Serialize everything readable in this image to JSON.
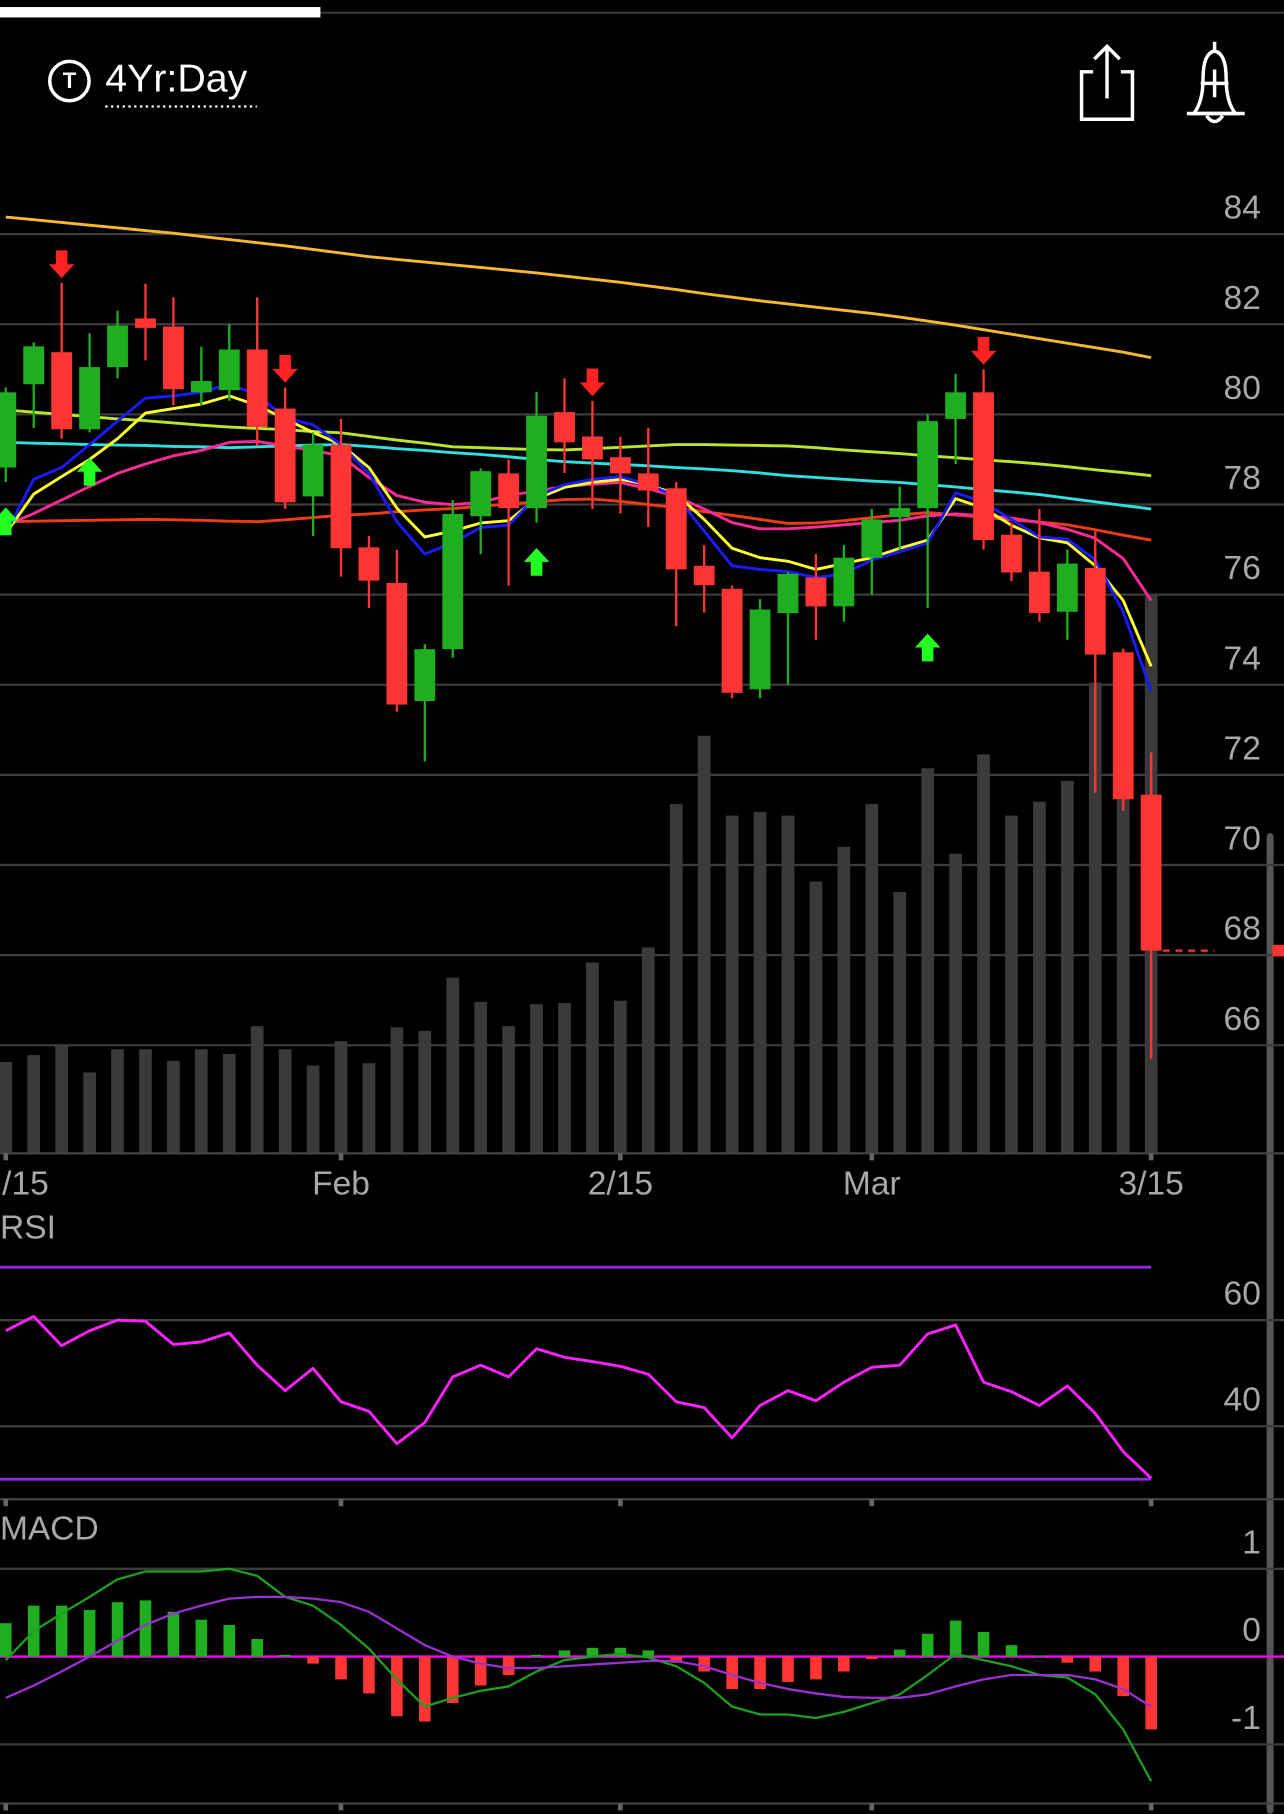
{
  "header": {
    "icon_letter": "T",
    "timeframe": "4Yr:Day"
  },
  "chart_data": [
    {
      "type": "candlestick",
      "categories": [
        "/15",
        null,
        null,
        null,
        null,
        null,
        null,
        null,
        null,
        null,
        null,
        null,
        "Feb",
        null,
        null,
        null,
        null,
        null,
        null,
        null,
        null,
        null,
        "2/15",
        null,
        null,
        null,
        null,
        null,
        null,
        null,
        null,
        "Mar",
        null,
        null,
        null,
        null,
        null,
        null,
        null,
        null,
        null,
        "3/15"
      ],
      "open": [
        78.82,
        80.67,
        81.38,
        79.67,
        81.05,
        82.13,
        81.95,
        80.49,
        80.54,
        81.44,
        80.13,
        78.18,
        79.33,
        77.05,
        76.26,
        73.64,
        74.79,
        77.74,
        78.69,
        77.92,
        80.05,
        79.51,
        79.05,
        78.69,
        78.36,
        76.64,
        76.13,
        73.9,
        75.59,
        76.38,
        75.74,
        76.82,
        77.72,
        77.92,
        79.9,
        80.49,
        77.33,
        76.51,
        75.62,
        76.59,
        74.72,
        71.56
      ],
      "high": [
        80.6,
        81.6,
        82.92,
        81.8,
        82.3,
        82.9,
        82.6,
        81.5,
        82.0,
        82.6,
        80.6,
        79.6,
        79.9,
        77.3,
        77.0,
        74.9,
        78.1,
        78.8,
        79.0,
        80.5,
        80.8,
        80.3,
        79.5,
        79.7,
        78.5,
        77.1,
        76.2,
        75.9,
        76.5,
        76.9,
        77.1,
        77.9,
        78.4,
        80.0,
        80.9,
        81.0,
        77.6,
        77.9,
        77.0,
        77.4,
        74.8,
        72.5
      ],
      "low": [
        78.5,
        79.7,
        79.46,
        79.6,
        80.8,
        81.2,
        80.2,
        80.2,
        80.3,
        79.3,
        77.9,
        77.3,
        76.4,
        75.7,
        73.4,
        72.3,
        74.6,
        76.9,
        76.2,
        77.6,
        78.7,
        77.9,
        77.8,
        77.5,
        75.3,
        75.6,
        73.7,
        73.7,
        74.0,
        75.0,
        75.4,
        76.0,
        77.0,
        75.7,
        78.9,
        77.0,
        76.3,
        75.4,
        75.0,
        71.6,
        71.2,
        65.7
      ],
      "close": [
        80.49,
        81.51,
        79.67,
        81.05,
        81.97,
        81.92,
        80.56,
        80.74,
        81.44,
        79.72,
        78.05,
        79.33,
        77.03,
        76.31,
        73.56,
        74.79,
        77.79,
        78.74,
        77.92,
        79.97,
        79.38,
        79.0,
        78.69,
        78.31,
        76.56,
        76.21,
        73.82,
        75.67,
        76.46,
        75.74,
        76.82,
        77.67,
        77.92,
        79.85,
        80.49,
        77.21,
        76.49,
        75.59,
        76.69,
        74.67,
        71.46,
        68.1
      ],
      "up_color": "#1fae1f",
      "down_color": "#ff3535",
      "volume": [
        79,
        85,
        94,
        70,
        90,
        90,
        80,
        90,
        86,
        110,
        90,
        76,
        97,
        78,
        109,
        106,
        152,
        131,
        110,
        129,
        130,
        165,
        132,
        178,
        302,
        361,
        292,
        295,
        292,
        235,
        265,
        302,
        226,
        333,
        259,
        345,
        292,
        304,
        322,
        407,
        417,
        484
      ],
      "volume_color": "#3a3a3a",
      "overlays": [
        {
          "color": "#f5b82e",
          "values": [
            84.38,
            84.32,
            84.26,
            84.2,
            84.14,
            84.08,
            84.02,
            83.95,
            83.88,
            83.81,
            83.74,
            83.66,
            83.58,
            83.5,
            83.44,
            83.38,
            83.32,
            83.26,
            83.2,
            83.14,
            83.07,
            83.0,
            82.93,
            82.85,
            82.77,
            82.68,
            82.6,
            82.52,
            82.45,
            82.38,
            82.31,
            82.24,
            82.16,
            82.07,
            81.98,
            81.88,
            81.78,
            81.68,
            81.58,
            81.48,
            81.38,
            81.26
          ]
        },
        {
          "color": "#b8e62e",
          "values": [
            80.1,
            80.05,
            80.0,
            79.95,
            79.9,
            79.86,
            79.81,
            79.76,
            79.72,
            79.69,
            79.66,
            79.62,
            79.59,
            79.51,
            79.43,
            79.36,
            79.28,
            79.26,
            79.24,
            79.22,
            79.21,
            79.24,
            79.27,
            79.3,
            79.33,
            79.33,
            79.32,
            79.31,
            79.3,
            79.26,
            79.21,
            79.17,
            79.13,
            79.08,
            79.04,
            78.99,
            78.95,
            78.9,
            78.84,
            78.77,
            78.71,
            78.64
          ]
        },
        {
          "color": "#30e0e0",
          "values": [
            79.38,
            79.36,
            79.35,
            79.33,
            79.32,
            79.31,
            79.29,
            79.28,
            79.26,
            79.28,
            79.3,
            79.32,
            79.33,
            79.29,
            79.24,
            79.2,
            79.15,
            79.11,
            79.06,
            79.0,
            78.95,
            78.92,
            78.89,
            78.86,
            78.82,
            78.79,
            78.75,
            78.7,
            78.64,
            78.6,
            78.56,
            78.52,
            78.49,
            78.44,
            78.39,
            78.33,
            78.28,
            78.22,
            78.14,
            78.06,
            77.98,
            77.9
          ]
        },
        {
          "color": "#f03c14",
          "values": [
            77.62,
            77.63,
            77.64,
            77.65,
            77.66,
            77.67,
            77.66,
            77.65,
            77.63,
            77.62,
            77.66,
            77.71,
            77.76,
            77.79,
            77.84,
            77.88,
            77.91,
            77.96,
            78.01,
            78.06,
            78.11,
            78.12,
            78.07,
            78.0,
            77.93,
            77.84,
            77.76,
            77.67,
            77.58,
            77.59,
            77.64,
            77.71,
            77.77,
            77.82,
            77.77,
            77.72,
            77.66,
            77.61,
            77.55,
            77.44,
            77.32,
            77.21
          ]
        },
        {
          "color": "#ff2a9a",
          "values": [
            77.54,
            77.8,
            78.1,
            78.4,
            78.69,
            78.9,
            79.08,
            79.2,
            79.38,
            79.4,
            79.3,
            79.2,
            79.08,
            78.6,
            78.2,
            78.05,
            78.0,
            78.05,
            78.2,
            78.3,
            78.4,
            78.45,
            78.49,
            78.35,
            78.18,
            77.9,
            77.6,
            77.46,
            77.46,
            77.5,
            77.55,
            77.6,
            77.65,
            77.75,
            77.79,
            77.75,
            77.7,
            77.6,
            77.45,
            77.25,
            76.8,
            75.87
          ]
        },
        {
          "color": "#ffff30",
          "values": [
            77.36,
            78.23,
            78.62,
            79.0,
            79.46,
            80.03,
            80.13,
            80.23,
            80.41,
            80.2,
            79.9,
            79.6,
            79.33,
            78.82,
            77.92,
            77.28,
            77.41,
            77.59,
            77.64,
            78.13,
            78.38,
            78.49,
            78.56,
            78.44,
            78.23,
            77.67,
            77.03,
            76.82,
            76.74,
            76.56,
            76.69,
            76.82,
            77.03,
            77.21,
            78.13,
            77.92,
            77.54,
            77.26,
            77.15,
            76.64,
            75.87,
            74.41
          ]
        },
        {
          "color": "#1a1aff",
          "values": [
            77.36,
            78.56,
            78.82,
            79.33,
            79.85,
            80.36,
            80.41,
            80.49,
            80.67,
            80.44,
            79.92,
            79.77,
            79.33,
            78.69,
            77.62,
            76.9,
            77.15,
            77.49,
            77.54,
            78.18,
            78.44,
            78.56,
            78.62,
            78.44,
            78.18,
            77.41,
            76.64,
            76.56,
            76.51,
            76.38,
            76.46,
            76.77,
            76.95,
            77.15,
            78.26,
            78.05,
            77.67,
            77.28,
            77.23,
            76.77,
            75.62,
            73.87
          ]
        }
      ],
      "buy_signals": [
        0,
        3,
        19,
        33
      ],
      "sell_signals": [
        2,
        10,
        21,
        35
      ],
      "buy_color": "#22ff22",
      "sell_color": "#ff2222",
      "ylim": [
        63.6,
        85.6
      ],
      "yticks": [
        66,
        68,
        70,
        72,
        74,
        76,
        78,
        80,
        82,
        84
      ],
      "grid": true
    },
    {
      "type": "line",
      "title": "RSI",
      "values": [
        58.0,
        60.7,
        55.2,
        58.0,
        60.0,
        59.8,
        55.4,
        55.9,
        57.6,
        51.5,
        46.7,
        50.9,
        44.6,
        42.8,
        36.7,
        40.7,
        49.3,
        51.5,
        49.3,
        54.6,
        53.0,
        52.2,
        51.3,
        49.8,
        44.6,
        43.5,
        37.8,
        43.9,
        46.7,
        44.8,
        48.3,
        51.1,
        51.5,
        57.4,
        59.1,
        48.3,
        46.5,
        43.9,
        47.6,
        42.4,
        35.2,
        30.2
      ],
      "color": "#ff22ff",
      "bands": [
        70,
        30
      ],
      "band_color": "#8a2be2",
      "ylim": [
        26,
        74
      ],
      "yticks": [
        40,
        60
      ],
      "grid": true
    },
    {
      "type": "macd",
      "title": "MACD",
      "histogram": [
        0.38,
        0.58,
        0.58,
        0.53,
        0.62,
        0.64,
        0.51,
        0.42,
        0.36,
        0.2,
        0.02,
        -0.08,
        -0.26,
        -0.42,
        -0.68,
        -0.74,
        -0.53,
        -0.33,
        -0.21,
        0.02,
        0.07,
        0.1,
        0.1,
        0.07,
        -0.07,
        -0.17,
        -0.37,
        -0.37,
        -0.29,
        -0.26,
        -0.17,
        -0.03,
        0.08,
        0.26,
        0.41,
        0.28,
        0.13,
        0.01,
        -0.07,
        -0.17,
        -0.45,
        -0.83
      ],
      "macd": [
        -0.04,
        0.29,
        0.49,
        0.68,
        0.88,
        0.97,
        0.97,
        0.97,
        1.0,
        0.92,
        0.68,
        0.58,
        0.36,
        0.09,
        -0.26,
        -0.57,
        -0.47,
        -0.39,
        -0.34,
        -0.17,
        -0.04,
        0.0,
        0.03,
        -0.01,
        -0.11,
        -0.3,
        -0.57,
        -0.66,
        -0.66,
        -0.7,
        -0.63,
        -0.53,
        -0.43,
        -0.21,
        0.03,
        -0.04,
        -0.11,
        -0.21,
        -0.24,
        -0.43,
        -0.83,
        -1.42
      ],
      "signal": [
        -0.47,
        -0.33,
        -0.17,
        0.0,
        0.18,
        0.36,
        0.49,
        0.58,
        0.66,
        0.68,
        0.68,
        0.66,
        0.62,
        0.51,
        0.32,
        0.13,
        0.0,
        -0.08,
        -0.13,
        -0.13,
        -0.11,
        -0.09,
        -0.07,
        -0.05,
        -0.05,
        -0.11,
        -0.21,
        -0.3,
        -0.37,
        -0.42,
        -0.46,
        -0.47,
        -0.47,
        -0.43,
        -0.34,
        -0.26,
        -0.21,
        -0.21,
        -0.21,
        -0.26,
        -0.37,
        -0.57
      ],
      "up_color": "#1fae1f",
      "down_color": "#ff3535",
      "macd_color": "#1e9e1e",
      "signal_color": "#9a30d0",
      "zero_color": "#ff00ff",
      "ylim": [
        -1.7,
        1.7
      ],
      "yticks": [
        -1,
        0,
        1
      ],
      "grid": true
    }
  ]
}
